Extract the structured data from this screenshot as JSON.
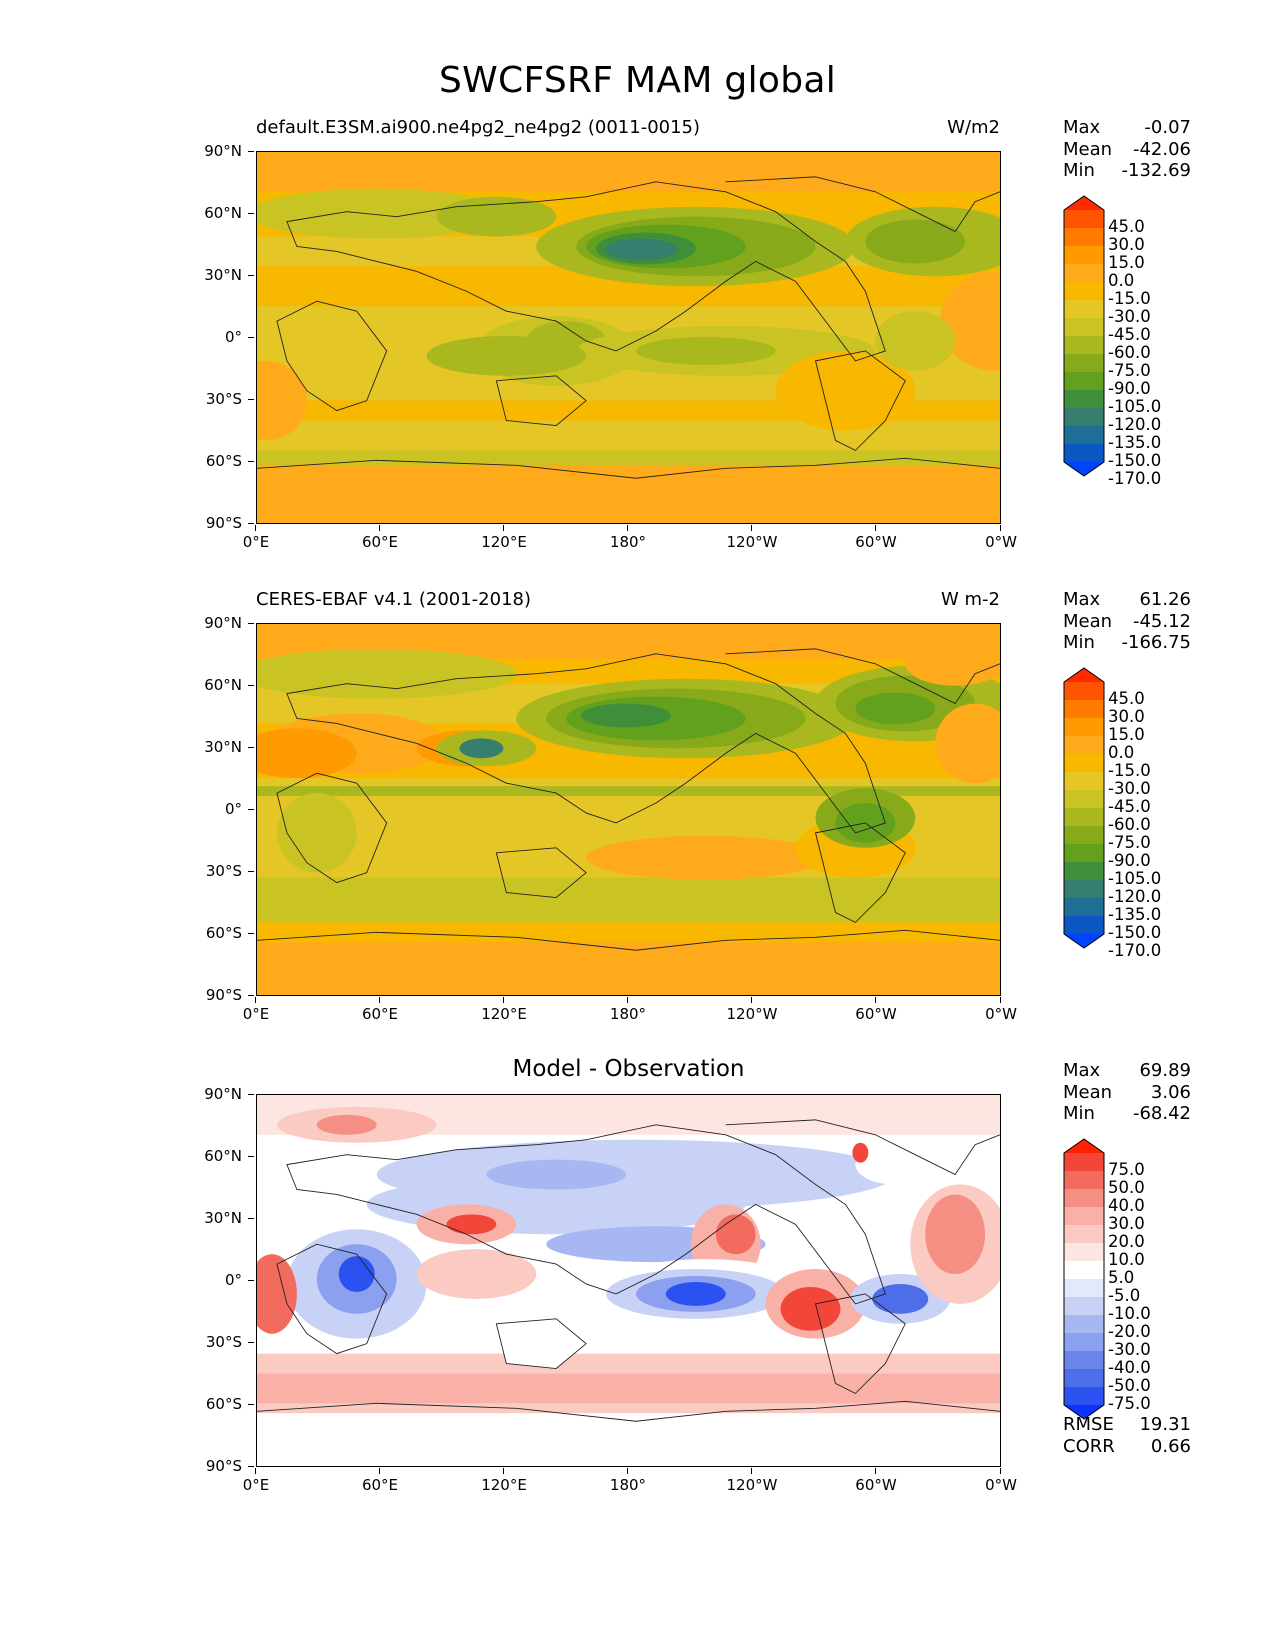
{
  "figure": {
    "title": "SWCFSRF MAM global"
  },
  "axis": {
    "lat_ticks": [
      "90°N",
      "60°N",
      "30°N",
      "0°",
      "30°S",
      "60°S",
      "90°S"
    ],
    "lon_ticks": [
      "0°E",
      "60°E",
      "120°E",
      "180°",
      "120°W",
      "60°W",
      "0°W"
    ]
  },
  "panels": [
    {
      "left_title": "default.E3SM.ai900.ne4pg2_ne4pg2 (0011-0015)",
      "center_title": "",
      "units": "W/m2",
      "stats": [
        {
          "label": "Max",
          "value": "-0.07"
        },
        {
          "label": "Mean",
          "value": "-42.06"
        },
        {
          "label": "Min",
          "value": "-132.69"
        }
      ],
      "colorbar": {
        "labels": [
          "45.0",
          "30.0",
          "15.0",
          "0.0",
          "-15.0",
          "-30.0",
          "-45.0",
          "-60.0",
          "-75.0",
          "-90.0",
          "-105.0",
          "-120.0",
          "-135.0",
          "-150.0",
          "-170.0"
        ],
        "colors": [
          "#ff2a00",
          "#ff5500",
          "#ff7a00",
          "#ff9a00",
          "#ffaa1a",
          "#f8b800",
          "#e4c626",
          "#c9c423",
          "#a9b81e",
          "#88aa1a",
          "#62a11d",
          "#3f8f3a",
          "#367e6e",
          "#1e6e95",
          "#0b57c4",
          "#0044ff"
        ]
      },
      "extra": []
    },
    {
      "left_title": "CERES-EBAF v4.1 (2001-2018)",
      "center_title": "",
      "units": "W m-2",
      "stats": [
        {
          "label": "Max",
          "value": "61.26"
        },
        {
          "label": "Mean",
          "value": "-45.12"
        },
        {
          "label": "Min",
          "value": "-166.75"
        }
      ],
      "colorbar": {
        "labels": [
          "45.0",
          "30.0",
          "15.0",
          "0.0",
          "-15.0",
          "-30.0",
          "-45.0",
          "-60.0",
          "-75.0",
          "-90.0",
          "-105.0",
          "-120.0",
          "-135.0",
          "-150.0",
          "-170.0"
        ],
        "colors": [
          "#ff2a00",
          "#ff5500",
          "#ff7a00",
          "#ff9a00",
          "#ffaa1a",
          "#f8b800",
          "#e4c626",
          "#c9c423",
          "#a9b81e",
          "#88aa1a",
          "#62a11d",
          "#3f8f3a",
          "#367e6e",
          "#1e6e95",
          "#0b57c4",
          "#0044ff"
        ]
      },
      "extra": []
    },
    {
      "left_title": "",
      "center_title": "Model - Observation",
      "units": "",
      "stats": [
        {
          "label": "Max",
          "value": "69.89"
        },
        {
          "label": "Mean",
          "value": "3.06"
        },
        {
          "label": "Min",
          "value": "-68.42"
        }
      ],
      "colorbar": {
        "labels": [
          "75.0",
          "50.0",
          "40.0",
          "30.0",
          "20.0",
          "10.0",
          "5.0",
          "-5.0",
          "-10.0",
          "-20.0",
          "-30.0",
          "-40.0",
          "-50.0",
          "-75.0"
        ],
        "colors": [
          "#ff2200",
          "#f2463b",
          "#f26b5f",
          "#f58f84",
          "#f9b0a6",
          "#fbcbc3",
          "#fde6e2",
          "#ffffff",
          "#e3e8fb",
          "#c8d2f6",
          "#a7b7f2",
          "#8ba0ee",
          "#6b86ea",
          "#4d6ee8",
          "#2b52f0",
          "#0a33ff"
        ]
      },
      "extra": [
        {
          "label": "RMSE",
          "value": "19.31"
        },
        {
          "label": "CORR",
          "value": "0.66"
        }
      ]
    }
  ]
}
